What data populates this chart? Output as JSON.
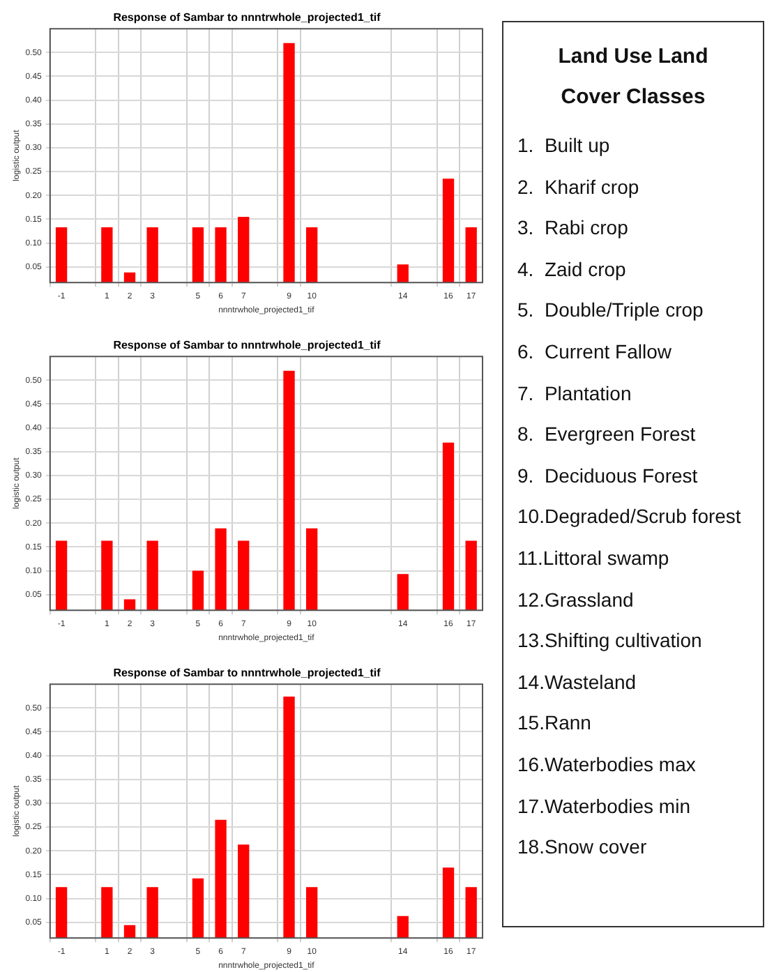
{
  "chart_data": [
    {
      "type": "bar",
      "title": "Response of Sambar to nnntrwhole_projected1_tif",
      "xlabel": "nnntrwhole_projected1_tif",
      "ylabel": "logistic output",
      "categories": [
        "-1",
        null,
        "1",
        "2",
        "3",
        null,
        "5",
        "6",
        "7",
        null,
        "9",
        "10",
        null,
        null,
        null,
        "14",
        null,
        "16",
        "17"
      ],
      "values": [
        0.133,
        null,
        0.133,
        0.038,
        0.133,
        null,
        0.133,
        0.133,
        0.155,
        null,
        0.52,
        0.133,
        null,
        null,
        null,
        0.055,
        null,
        0.235,
        0.133
      ],
      "color": "#ff0000",
      "ylim": [
        0.017,
        0.55
      ],
      "yticks": [
        {
          "value": 0.05,
          "label": "0.05"
        },
        {
          "value": 0.1,
          "label": "0.10"
        },
        {
          "value": 0.15,
          "label": "0.15"
        },
        {
          "value": 0.2,
          "label": "0.20"
        },
        {
          "value": 0.25,
          "label": "0.25"
        },
        {
          "value": 0.3,
          "label": "0.30"
        },
        {
          "value": 0.35,
          "label": "0.35"
        },
        {
          "value": 0.4,
          "label": "0.40"
        },
        {
          "value": 0.45,
          "label": "0.45"
        },
        {
          "value": 0.5,
          "label": "0.50"
        }
      ],
      "grid": true
    },
    {
      "type": "bar",
      "title": "Response of Sambar to nnntrwhole_projected1_tif",
      "xlabel": "nnntrwhole_projected1_tif",
      "ylabel": "logistic output",
      "categories": [
        "-1",
        null,
        "1",
        "2",
        "3",
        null,
        "5",
        "6",
        "7",
        null,
        "9",
        "10",
        null,
        null,
        null,
        "14",
        null,
        "16",
        "17"
      ],
      "values": [
        0.163,
        null,
        0.163,
        0.04,
        0.163,
        null,
        0.1,
        0.189,
        0.163,
        null,
        0.52,
        0.189,
        null,
        null,
        null,
        0.093,
        null,
        0.369,
        0.163
      ],
      "color": "#ff0000",
      "ylim": [
        0.017,
        0.55
      ],
      "yticks": [
        {
          "value": 0.05,
          "label": "0.05"
        },
        {
          "value": 0.1,
          "label": "0.10"
        },
        {
          "value": 0.15,
          "label": "0.15"
        },
        {
          "value": 0.2,
          "label": "0.20"
        },
        {
          "value": 0.25,
          "label": "0.25"
        },
        {
          "value": 0.3,
          "label": "0.30"
        },
        {
          "value": 0.35,
          "label": "0.35"
        },
        {
          "value": 0.4,
          "label": "0.40"
        },
        {
          "value": 0.45,
          "label": "0.45"
        },
        {
          "value": 0.5,
          "label": "0.50"
        }
      ],
      "grid": true
    },
    {
      "type": "bar",
      "title": "Response of Sambar to nnntrwhole_projected1_tif",
      "xlabel": "nnntrwhole_projected1_tif",
      "ylabel": "logistic output",
      "categories": [
        "-1",
        null,
        "1",
        "2",
        "3",
        null,
        "5",
        "6",
        "7",
        null,
        "9",
        "10",
        null,
        null,
        null,
        "14",
        null,
        "16",
        "17"
      ],
      "values": [
        0.124,
        null,
        0.124,
        0.044,
        0.124,
        null,
        0.142,
        0.265,
        0.213,
        null,
        0.524,
        0.124,
        null,
        null,
        null,
        0.063,
        null,
        0.165,
        0.124
      ],
      "color": "#ff0000",
      "ylim": [
        0.017,
        0.55
      ],
      "yticks": [
        {
          "value": 0.05,
          "label": "0.05"
        },
        {
          "value": 0.1,
          "label": "0.10"
        },
        {
          "value": 0.15,
          "label": "0.15"
        },
        {
          "value": 0.2,
          "label": "0.20"
        },
        {
          "value": 0.25,
          "label": "0.25"
        },
        {
          "value": 0.3,
          "label": "0.30"
        },
        {
          "value": 0.35,
          "label": "0.35"
        },
        {
          "value": 0.4,
          "label": "0.40"
        },
        {
          "value": 0.45,
          "label": "0.45"
        },
        {
          "value": 0.5,
          "label": "0.50"
        }
      ],
      "grid": true
    },
    {
      "type": "other",
      "title": "Land Use Land Cover Classes",
      "annotations": [
        "1.  Built up",
        "2.  Kharif crop",
        "3.  Rabi crop",
        "4.  Zaid crop",
        "5.  Double/Triple crop",
        "6.  Current Fallow",
        "7.  Plantation",
        "8.  Evergreen Forest",
        "9.  Deciduous Forest",
        "10.Degraded/Scrub forest",
        "11.Littoral swamp",
        "12.Grassland",
        "13.Shifting cultivation",
        "14.Wasteland",
        "15.Rann",
        "16.Waterbodies max",
        "17.Waterbodies min",
        "18.Snow cover"
      ]
    }
  ]
}
